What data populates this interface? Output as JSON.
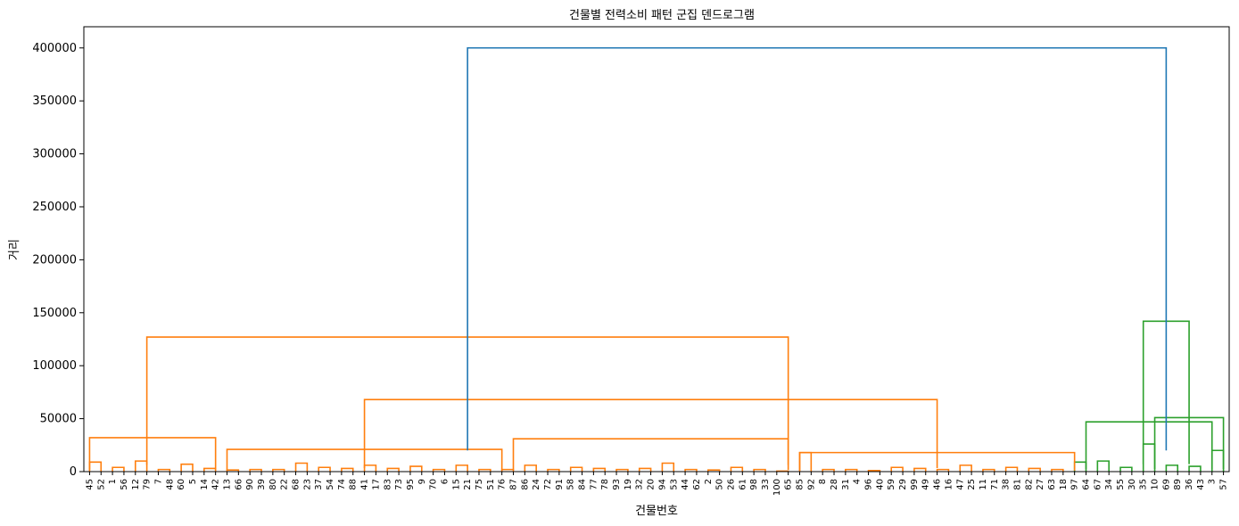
{
  "chart_data": {
    "type": "dendrogram",
    "title": "건물별 전력소비 패턴 군집 덴드로그램",
    "xlabel": "건물번호",
    "ylabel": "거리",
    "ylim": [
      0,
      420000
    ],
    "yticks": [
      0,
      50000,
      100000,
      150000,
      200000,
      250000,
      300000,
      350000,
      400000
    ],
    "leaves": [
      "45",
      "52",
      "1",
      "56",
      "12",
      "79",
      "7",
      "48",
      "60",
      "5",
      "14",
      "42",
      "13",
      "66",
      "90",
      "39",
      "80",
      "22",
      "68",
      "23",
      "37",
      "54",
      "74",
      "88",
      "41",
      "17",
      "83",
      "73",
      "95",
      "9",
      "70",
      "6",
      "15",
      "21",
      "75",
      "51",
      "76",
      "87",
      "86",
      "24",
      "72",
      "91",
      "58",
      "84",
      "77",
      "78",
      "93",
      "19",
      "32",
      "20",
      "94",
      "53",
      "44",
      "62",
      "2",
      "50",
      "26",
      "61",
      "98",
      "33",
      "100",
      "65",
      "85",
      "92",
      "8",
      "28",
      "31",
      "4",
      "96",
      "40",
      "59",
      "29",
      "99",
      "49",
      "46",
      "16",
      "47",
      "25",
      "11",
      "71",
      "38",
      "81",
      "82",
      "27",
      "63",
      "18",
      "97",
      "64",
      "67",
      "34",
      "55",
      "30",
      "35",
      "10",
      "69",
      "89",
      "36",
      "43",
      "3",
      "57"
    ],
    "colors": {
      "cluster_a": "#ff7f0e",
      "cluster_b": "#2ca02c",
      "above_threshold": "#1f77b4"
    },
    "merges": [
      {
        "pairs": [
          0,
          1
        ],
        "height": 9000,
        "color": "cluster_a"
      },
      {
        "pairs": [
          2,
          3
        ],
        "height": 4000,
        "color": "cluster_a"
      },
      {
        "pairs": [
          4,
          5
        ],
        "height": 10000,
        "color": "cluster_a"
      },
      {
        "pairs": [
          6,
          7
        ],
        "height": 2000,
        "color": "cluster_a"
      },
      {
        "pairs": [
          8,
          9
        ],
        "height": 7000,
        "color": "cluster_a"
      },
      {
        "pairs": [
          10,
          11
        ],
        "height": 3000,
        "color": "cluster_a"
      },
      {
        "pairs": [
          12,
          13
        ],
        "height": 1500,
        "color": "cluster_a"
      },
      {
        "pairs": [
          14,
          15
        ],
        "height": 2000,
        "color": "cluster_a"
      },
      {
        "pairs": [
          16,
          17
        ],
        "height": 2000,
        "color": "cluster_a"
      },
      {
        "pairs": [
          18,
          19
        ],
        "height": 8000,
        "color": "cluster_a"
      },
      {
        "pairs": [
          20,
          21
        ],
        "height": 4000,
        "color": "cluster_a"
      },
      {
        "pairs": [
          22,
          23
        ],
        "height": 3000,
        "color": "cluster_a"
      },
      {
        "pairs": [
          24,
          25
        ],
        "height": 6000,
        "color": "cluster_a"
      },
      {
        "pairs": [
          26,
          27
        ],
        "height": 3000,
        "color": "cluster_a"
      },
      {
        "pairs": [
          28,
          29
        ],
        "height": 5000,
        "color": "cluster_a"
      },
      {
        "pairs": [
          30,
          31
        ],
        "height": 2000,
        "color": "cluster_a"
      },
      {
        "pairs": [
          32,
          33
        ],
        "height": 6000,
        "color": "cluster_a"
      },
      {
        "pairs": [
          34,
          35
        ],
        "height": 2000,
        "color": "cluster_a"
      },
      {
        "pairs": [
          36,
          37
        ],
        "height": 2000,
        "color": "cluster_a"
      },
      {
        "pairs": [
          38,
          39
        ],
        "height": 6000,
        "color": "cluster_a"
      },
      {
        "pairs": [
          40,
          41
        ],
        "height": 2000,
        "color": "cluster_a"
      },
      {
        "pairs": [
          42,
          43
        ],
        "height": 4000,
        "color": "cluster_a"
      },
      {
        "pairs": [
          44,
          45
        ],
        "height": 3000,
        "color": "cluster_a"
      },
      {
        "pairs": [
          46,
          47
        ],
        "height": 2000,
        "color": "cluster_a"
      },
      {
        "pairs": [
          48,
          49
        ],
        "height": 3000,
        "color": "cluster_a"
      },
      {
        "pairs": [
          50,
          51
        ],
        "height": 8000,
        "color": "cluster_a"
      },
      {
        "pairs": [
          52,
          53
        ],
        "height": 2000,
        "color": "cluster_a"
      },
      {
        "pairs": [
          54,
          55
        ],
        "height": 1500,
        "color": "cluster_a"
      },
      {
        "pairs": [
          56,
          57
        ],
        "height": 4000,
        "color": "cluster_a"
      },
      {
        "pairs": [
          58,
          59
        ],
        "height": 2000,
        "color": "cluster_a"
      },
      {
        "pairs": [
          60,
          61
        ],
        "height": 500,
        "color": "cluster_a"
      },
      {
        "pairs": [
          62,
          63
        ],
        "height": 18000,
        "color": "cluster_a"
      },
      {
        "pairs": [
          64,
          65
        ],
        "height": 2000,
        "color": "cluster_a"
      },
      {
        "pairs": [
          66,
          67
        ],
        "height": 2000,
        "color": "cluster_a"
      },
      {
        "pairs": [
          68,
          69
        ],
        "height": 1000,
        "color": "cluster_a"
      },
      {
        "pairs": [
          70,
          71
        ],
        "height": 4000,
        "color": "cluster_a"
      },
      {
        "pairs": [
          72,
          73
        ],
        "height": 3000,
        "color": "cluster_a"
      },
      {
        "pairs": [
          74,
          75
        ],
        "height": 2000,
        "color": "cluster_a"
      },
      {
        "pairs": [
          76,
          77
        ],
        "height": 6000,
        "color": "cluster_a"
      },
      {
        "pairs": [
          78,
          79
        ],
        "height": 2000,
        "color": "cluster_a"
      },
      {
        "pairs": [
          80,
          81
        ],
        "height": 4000,
        "color": "cluster_a"
      },
      {
        "pairs": [
          82,
          83
        ],
        "height": 3000,
        "color": "cluster_a"
      },
      {
        "pairs": [
          84,
          85
        ],
        "height": 2000,
        "color": "cluster_a"
      },
      {
        "pairs": [
          86,
          87
        ],
        "height": 9000,
        "color": "cluster_b"
      },
      {
        "pairs": [
          88,
          89
        ],
        "height": 10000,
        "color": "cluster_b"
      },
      {
        "pairs": [
          90,
          91
        ],
        "height": 4000,
        "color": "cluster_b"
      },
      {
        "pairs": [
          92,
          93
        ],
        "height": 26000,
        "color": "cluster_b"
      },
      {
        "pairs": [
          94,
          95
        ],
        "height": 6000,
        "color": "cluster_b"
      },
      {
        "pairs": [
          96,
          97
        ],
        "height": 5000,
        "color": "cluster_b"
      },
      {
        "pairs": [
          98,
          99
        ],
        "height": 20000,
        "color": "cluster_b"
      }
    ],
    "top_links": [
      {
        "span": [
          0,
          11
        ],
        "height": 32000,
        "color": "cluster_a"
      },
      {
        "span": [
          12,
          36
        ],
        "height": 21000,
        "color": "cluster_a"
      },
      {
        "span": [
          37,
          61
        ],
        "height": 31000,
        "color": "cluster_a"
      },
      {
        "span": [
          62,
          86
        ],
        "height": 18000,
        "color": "cluster_a"
      },
      {
        "span": [
          24,
          74
        ],
        "height": 68000,
        "color": "cluster_a"
      },
      {
        "span": [
          5,
          61
        ],
        "height": 127000,
        "color": "cluster_a"
      },
      {
        "span": [
          87,
          98
        ],
        "height": 47000,
        "color": "cluster_b"
      },
      {
        "span": [
          93,
          99
        ],
        "height": 51000,
        "color": "cluster_b"
      },
      {
        "span": [
          92,
          96
        ],
        "height": 142000,
        "color": "cluster_b"
      },
      {
        "span": [
          33,
          94
        ],
        "height": 400000,
        "color": "above_threshold"
      }
    ]
  }
}
